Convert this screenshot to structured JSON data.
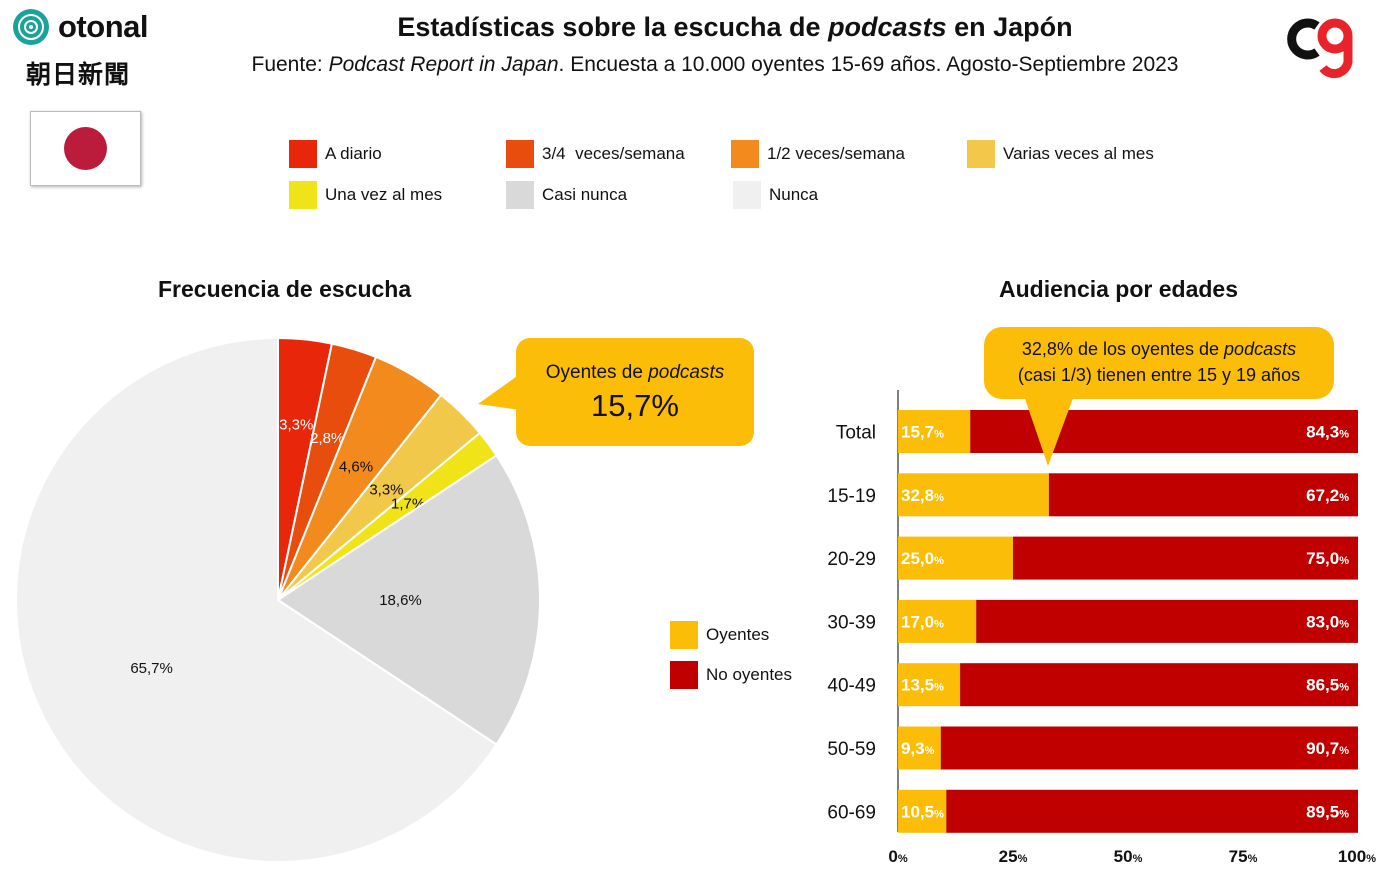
{
  "header": {
    "title_pre": "Estadísticas sobre la escucha de ",
    "title_em": "podcasts",
    "title_post": " en Japón",
    "subtitle_pre": "Fuente: ",
    "subtitle_em": "Podcast Report in Japan",
    "subtitle_post": ". Encuesta a 10.000 oyentes 15-69 años. Agosto-Septiembre 2023",
    "logo_left_text": "otonal",
    "logo_left_sub": "朝日新聞"
  },
  "legend_top": [
    {
      "label": "A diario",
      "color": "#e8270a"
    },
    {
      "label": "3/4  veces/semana",
      "color": "#e84d0e"
    },
    {
      "label": "1/2 veces/semana",
      "color": "#f28a1e"
    },
    {
      "label": "Varias veces al mes",
      "color": "#f2c84a"
    },
    {
      "label": "Una vez al mes",
      "color": "#f0e418"
    },
    {
      "label": "Casi nunca",
      "color": "#d9d9d9"
    },
    {
      "label": "Nunca",
      "color": "#f0f0f0"
    }
  ],
  "pie_section": {
    "title": "Frecuencia de escucha",
    "callout_line1_pre": "Oyentes de ",
    "callout_line1_em": "podcasts",
    "callout_value": "15,7%"
  },
  "bar_section": {
    "title": "Audiencia por edades",
    "callout_line1_pre": "32,8% de los oyentes de ",
    "callout_line1_em": "podcasts",
    "callout_line2": "(casi 1/3) tienen entre 15 y 19 años",
    "legend": [
      {
        "label": "Oyentes",
        "color": "#fbbd08"
      },
      {
        "label": "No oyentes",
        "color": "#c00000"
      }
    ]
  },
  "chart_data": [
    {
      "type": "pie",
      "title": "Frecuencia de escucha",
      "categories": [
        "A diario",
        "3/4  veces/semana",
        "1/2 veces/semana",
        "Varias veces al mes",
        "Una vez al mes",
        "Casi nunca",
        "Nunca"
      ],
      "values": [
        3.3,
        2.8,
        4.6,
        3.3,
        1.7,
        18.6,
        65.7
      ],
      "labels": [
        "3,3%",
        "2,8%",
        "4,6%",
        "3,3%",
        "1,7%",
        "18,6%",
        "65,7%"
      ],
      "colors": [
        "#e8270a",
        "#e84d0e",
        "#f28a1e",
        "#f2c84a",
        "#f0e418",
        "#d9d9d9",
        "#f0f0f0"
      ]
    },
    {
      "type": "bar",
      "stacked": true,
      "orientation": "horizontal",
      "title": "Audiencia por edades",
      "categories": [
        "Total",
        "15-19",
        "20-29",
        "30-39",
        "40-49",
        "50-59",
        "60-69"
      ],
      "series": [
        {
          "name": "Oyentes",
          "values": [
            15.7,
            32.8,
            25.0,
            17.0,
            13.5,
            9.3,
            10.5
          ],
          "labels": [
            "15,7",
            "32,8",
            "25,0",
            "17,0",
            "13,5",
            "9,3",
            "10,5"
          ],
          "color": "#fbbd08"
        },
        {
          "name": "No oyentes",
          "values": [
            84.3,
            67.2,
            75.0,
            83.0,
            86.5,
            90.7,
            89.5
          ],
          "labels": [
            "84,3",
            "67,2",
            "75,0",
            "83,0",
            "86,5",
            "90,7",
            "89,5"
          ],
          "color": "#c00000"
        }
      ],
      "unit": "%",
      "xticks": [
        "0",
        "25",
        "50",
        "75",
        "100"
      ],
      "xlim": [
        0,
        100
      ]
    }
  ]
}
